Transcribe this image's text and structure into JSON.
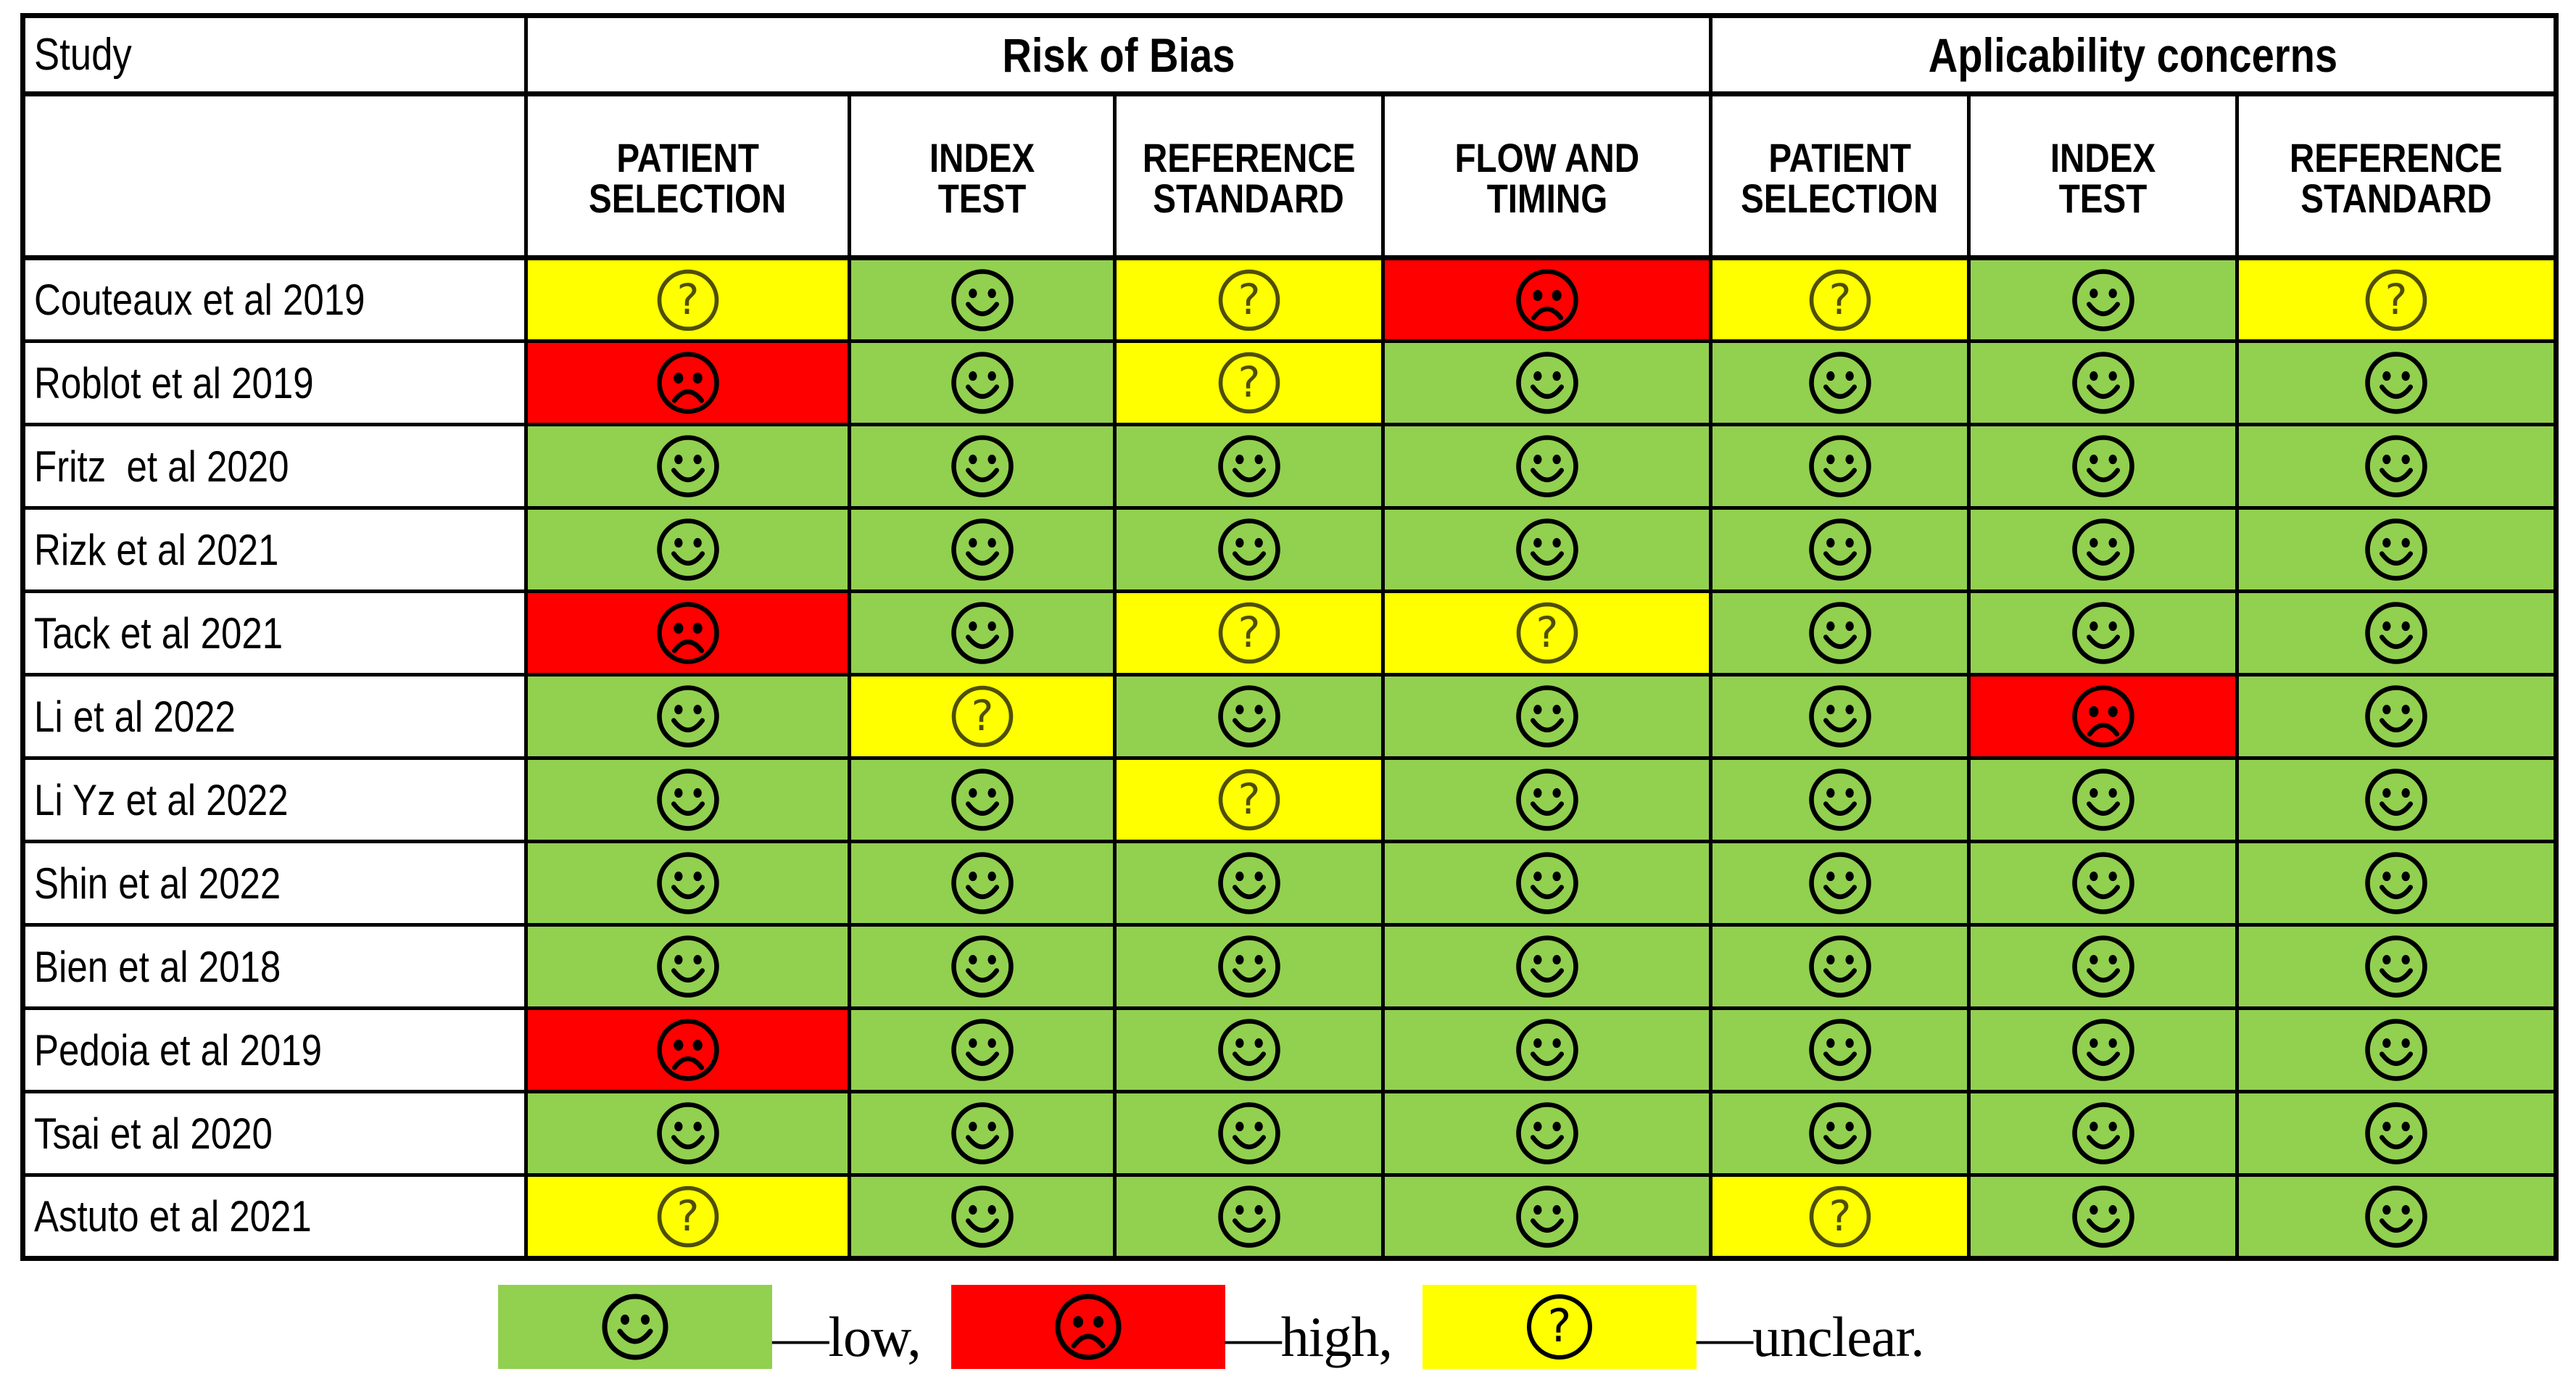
{
  "colors": {
    "low_bg": "#92D050",
    "high_bg": "#FF0000",
    "unclear_bg": "#FFFF00",
    "border": "#000000",
    "glyph": "#000000",
    "unclear_glyph": "#4e4e08"
  },
  "table": {
    "corner_header": "Study",
    "groups": [
      {
        "label": "Risk of Bias"
      },
      {
        "label": "Aplicability concerns"
      }
    ],
    "columns": [
      {
        "line1": "PATIENT",
        "line2": "SELECTION"
      },
      {
        "line1": "INDEX",
        "line2": "TEST"
      },
      {
        "line1": "REFERENCE",
        "line2": "STANDARD"
      },
      {
        "line1": "FLOW AND",
        "line2": "TIMING"
      },
      {
        "line1": "PATIENT",
        "line2": "SELECTION"
      },
      {
        "line1": "INDEX",
        "line2": "TEST"
      },
      {
        "line1": "REFERENCE",
        "line2": "STANDARD"
      }
    ],
    "rows": [
      {
        "study": "Couteaux et al 2019",
        "ratings": [
          "unclear",
          "low",
          "unclear",
          "high",
          "unclear",
          "low",
          "unclear"
        ]
      },
      {
        "study": "Roblot et al 2019",
        "ratings": [
          "high",
          "low",
          "unclear",
          "low",
          "low",
          "low",
          "low"
        ]
      },
      {
        "study": "Fritz  et al 2020",
        "ratings": [
          "low",
          "low",
          "low",
          "low",
          "low",
          "low",
          "low"
        ]
      },
      {
        "study": "Rizk et al 2021",
        "ratings": [
          "low",
          "low",
          "low",
          "low",
          "low",
          "low",
          "low"
        ]
      },
      {
        "study": "Tack et al 2021",
        "ratings": [
          "high",
          "low",
          "unclear",
          "unclear",
          "low",
          "low",
          "low"
        ]
      },
      {
        "study": "Li et al 2022",
        "ratings": [
          "low",
          "unclear",
          "low",
          "low",
          "low",
          "high",
          "low"
        ]
      },
      {
        "study": "Li Yz et al 2022",
        "ratings": [
          "low",
          "low",
          "unclear",
          "low",
          "low",
          "low",
          "low"
        ]
      },
      {
        "study": "Shin et al 2022",
        "ratings": [
          "low",
          "low",
          "low",
          "low",
          "low",
          "low",
          "low"
        ]
      },
      {
        "study": "Bien et al 2018",
        "ratings": [
          "low",
          "low",
          "low",
          "low",
          "low",
          "low",
          "low"
        ]
      },
      {
        "study": "Pedoia et al 2019",
        "ratings": [
          "high",
          "low",
          "low",
          "low",
          "low",
          "low",
          "low"
        ]
      },
      {
        "study": "Tsai et al 2020",
        "ratings": [
          "low",
          "low",
          "low",
          "low",
          "low",
          "low",
          "low"
        ]
      },
      {
        "study": "Astuto et al 2021",
        "ratings": [
          "unclear",
          "low",
          "low",
          "low",
          "unclear",
          "low",
          "low"
        ]
      }
    ]
  },
  "legend": {
    "items": [
      {
        "rating": "low",
        "label": "—low,"
      },
      {
        "rating": "high",
        "label": "—high,"
      },
      {
        "rating": "unclear",
        "label": "—unclear."
      }
    ]
  },
  "chart_data": {
    "type": "table",
    "title": "",
    "column_groups": [
      {
        "label": "Risk of Bias",
        "colspan": 4
      },
      {
        "label": "Aplicability concerns",
        "colspan": 3
      }
    ],
    "columns": [
      "Study",
      "Risk of Bias - PATIENT SELECTION",
      "Risk of Bias - INDEX TEST",
      "Risk of Bias - REFERENCE STANDARD",
      "Risk of Bias - FLOW AND TIMING",
      "Aplicability concerns - PATIENT SELECTION",
      "Aplicability concerns - INDEX TEST",
      "Aplicability concerns - REFERENCE STANDARD"
    ],
    "rows": [
      [
        "Couteaux et al 2019",
        "unclear",
        "low",
        "unclear",
        "high",
        "unclear",
        "low",
        "unclear"
      ],
      [
        "Roblot et al 2019",
        "high",
        "low",
        "unclear",
        "low",
        "low",
        "low",
        "low"
      ],
      [
        "Fritz  et al 2020",
        "low",
        "low",
        "low",
        "low",
        "low",
        "low",
        "low"
      ],
      [
        "Rizk et al 2021",
        "low",
        "low",
        "low",
        "low",
        "low",
        "low",
        "low"
      ],
      [
        "Tack et al 2021",
        "high",
        "low",
        "unclear",
        "unclear",
        "low",
        "low",
        "low"
      ],
      [
        "Li et al 2022",
        "low",
        "unclear",
        "low",
        "low",
        "low",
        "high",
        "low"
      ],
      [
        "Li Yz et al 2022",
        "low",
        "low",
        "unclear",
        "low",
        "low",
        "low",
        "low"
      ],
      [
        "Shin et al 2022",
        "low",
        "low",
        "low",
        "low",
        "low",
        "low",
        "low"
      ],
      [
        "Bien et al 2018",
        "low",
        "low",
        "low",
        "low",
        "low",
        "low",
        "low"
      ],
      [
        "Pedoia et al 2019",
        "high",
        "low",
        "low",
        "low",
        "low",
        "low",
        "low"
      ],
      [
        "Tsai et al 2020",
        "low",
        "low",
        "low",
        "low",
        "low",
        "low",
        "low"
      ],
      [
        "Astuto et al 2021",
        "unclear",
        "low",
        "low",
        "low",
        "unclear",
        "low",
        "low"
      ]
    ],
    "legend": {
      "low": "green smiley face",
      "high": "red frowning face",
      "unclear": "yellow question mark"
    },
    "layout": {
      "grid": "black cell borders",
      "legend_position": "bottom center"
    }
  }
}
